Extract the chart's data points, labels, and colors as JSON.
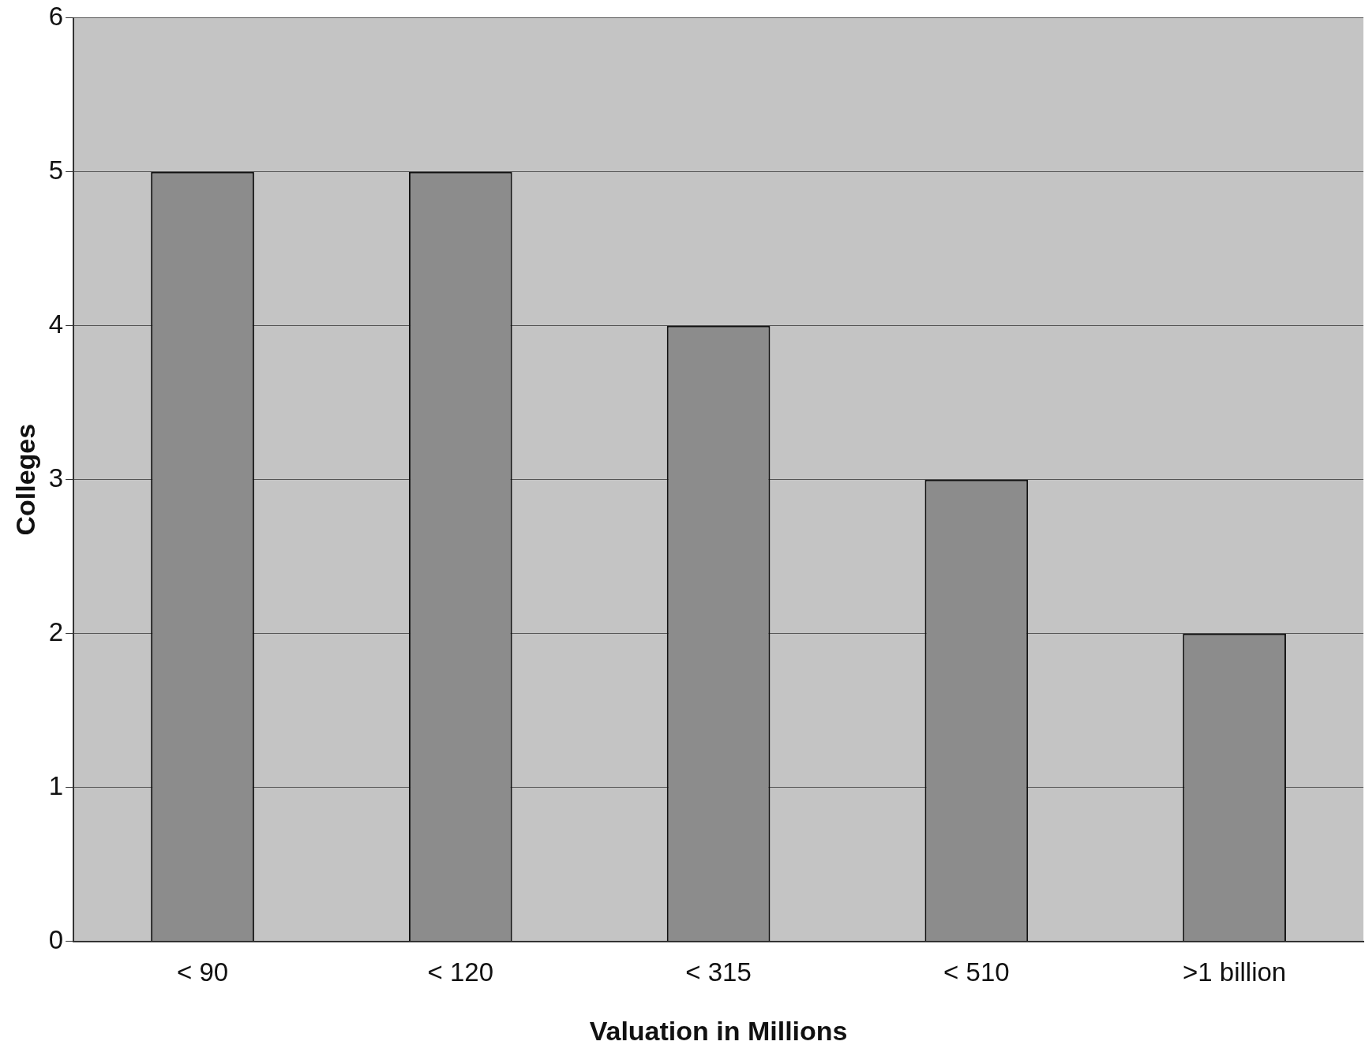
{
  "chart_data": {
    "type": "bar",
    "xlabel": "Valuation in Millions",
    "ylabel": "Colleges",
    "categories": [
      "< 90",
      "< 120",
      "< 315",
      "< 510",
      ">1 billion"
    ],
    "values": [
      5,
      5,
      4,
      3,
      2
    ],
    "color": "#8c8c8c",
    "ylim": [
      0,
      6
    ],
    "yticks": [
      0,
      1,
      2,
      3,
      4,
      5,
      6
    ],
    "grid": "y",
    "legend": false
  }
}
